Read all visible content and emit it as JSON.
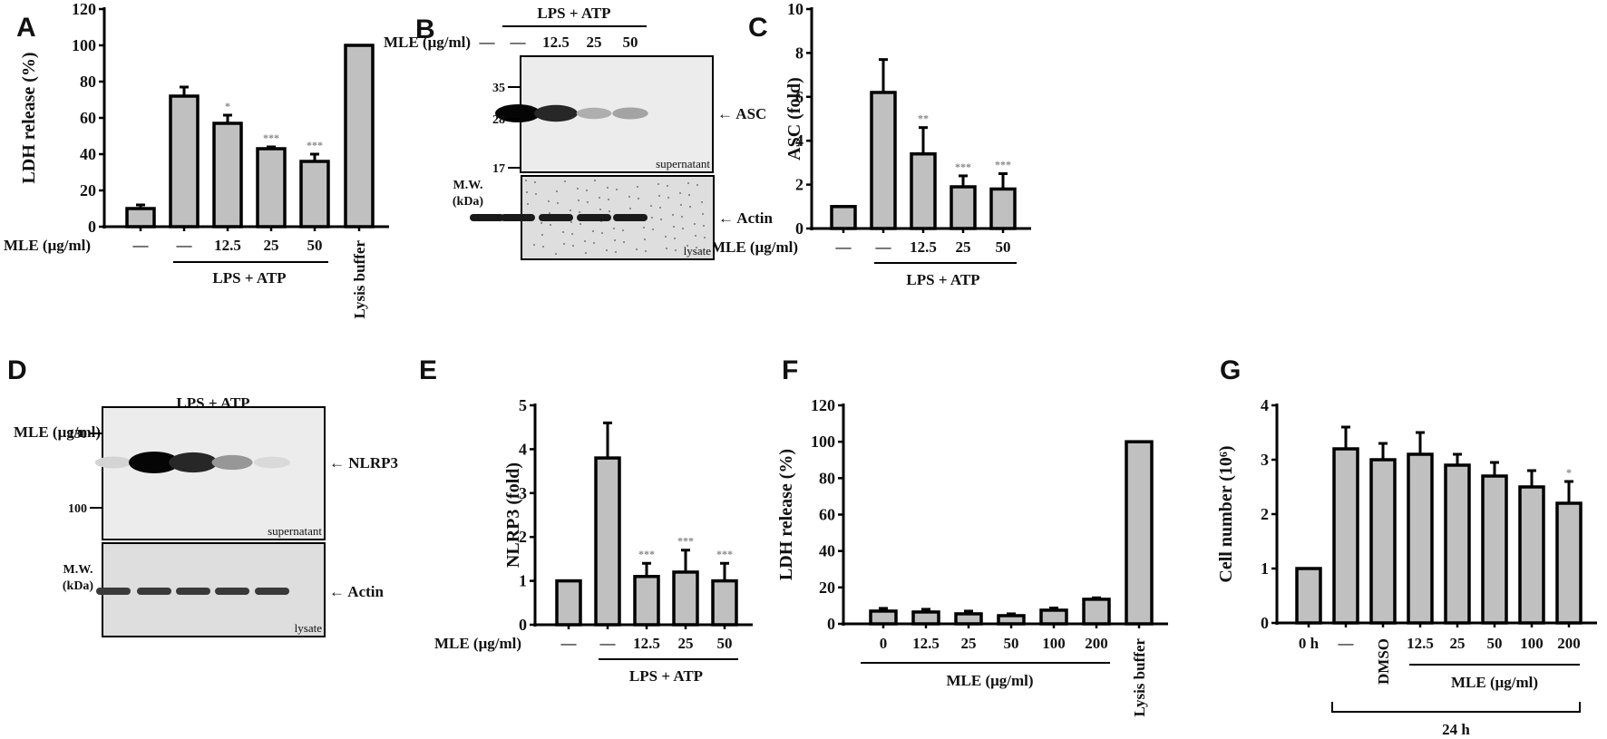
{
  "colors": {
    "bar_fill": "#c0c0c0",
    "axis": "#000000",
    "sig": "#8a8a8a",
    "blot_bg": "#ececec",
    "actin_bg": "#dedede"
  },
  "chart_data": [
    {
      "panel": "A",
      "type": "bar",
      "ylabel": "LDH release (%)",
      "ylim": [
        0,
        120
      ],
      "yticks": [
        0,
        20,
        40,
        60,
        80,
        100,
        120
      ],
      "row_label": "MLE (μg/ml)",
      "categories": [
        "—",
        "—",
        "12.5",
        "25",
        "50",
        "Lysis buffer"
      ],
      "values": [
        10,
        72,
        57,
        43,
        36,
        100
      ],
      "errors": [
        2,
        5,
        4.5,
        1,
        4,
        0
      ],
      "significance": [
        "",
        "",
        "*",
        "***",
        "***",
        ""
      ],
      "group_bar": {
        "label": "LPS + ATP",
        "from": 1,
        "to": 4
      }
    },
    {
      "panel": "B",
      "type": "blot",
      "header": "LPS + ATP",
      "row_label": "MLE (μg/ml)",
      "lanes": [
        "—",
        "—",
        "12.5",
        "25",
        "50"
      ],
      "markers": [
        "35",
        "28",
        "17"
      ],
      "mw_label": "M.W.",
      "mw_unit": "(kDa)",
      "target": "ASC",
      "target_blot": "supernatant",
      "loading": "Actin",
      "loading_blot": "lysate",
      "band_intensity": [
        0,
        1.0,
        0.85,
        0.25,
        0.3
      ]
    },
    {
      "panel": "C",
      "type": "bar",
      "ylabel": "ASC (fold)",
      "ylim": [
        0,
        10
      ],
      "yticks": [
        0,
        2,
        4,
        6,
        8,
        10
      ],
      "row_label": "MLE (μg/ml)",
      "categories": [
        "—",
        "—",
        "12.5",
        "25",
        "50"
      ],
      "values": [
        1,
        6.2,
        3.4,
        1.9,
        1.8
      ],
      "errors": [
        0,
        1.5,
        1.2,
        0.5,
        0.7
      ],
      "significance": [
        "",
        "",
        "**",
        "***",
        "***"
      ],
      "group_bar": {
        "label": "LPS + ATP",
        "from": 1,
        "to": 4
      }
    },
    {
      "panel": "D",
      "type": "blot",
      "header": "LPS + ATP",
      "row_label": "MLE (μg/ml)",
      "lanes": [
        "—",
        "—",
        "12.5",
        "25",
        "50"
      ],
      "markers": [
        "130",
        "100"
      ],
      "mw_label": "M.W.",
      "mw_unit": "(kDa)",
      "target": "NLRP3",
      "target_blot": "supernatant",
      "loading": "Actin",
      "loading_blot": "lysate",
      "band_intensity": [
        0.08,
        1.0,
        0.85,
        0.35,
        0.06
      ]
    },
    {
      "panel": "E",
      "type": "bar",
      "ylabel": "NLRP3 (fold)",
      "ylim": [
        0,
        5
      ],
      "yticks": [
        0,
        1,
        2,
        3,
        4,
        5
      ],
      "row_label": "MLE (μg/ml)",
      "categories": [
        "—",
        "—",
        "12.5",
        "25",
        "50"
      ],
      "values": [
        1,
        3.8,
        1.1,
        1.2,
        1.0
      ],
      "errors": [
        0,
        0.8,
        0.3,
        0.5,
        0.4
      ],
      "significance": [
        "",
        "",
        "***",
        "***",
        "***"
      ],
      "group_bar": {
        "label": "LPS + ATP",
        "from": 1,
        "to": 4
      }
    },
    {
      "panel": "F",
      "type": "bar",
      "ylabel": "LDH release (%)",
      "ylim": [
        0,
        120
      ],
      "yticks": [
        0,
        20,
        40,
        60,
        80,
        100,
        120
      ],
      "categories": [
        "0",
        "12.5",
        "25",
        "50",
        "100",
        "200",
        "Lysis buffer"
      ],
      "values": [
        7,
        6.5,
        5.5,
        4.5,
        7.5,
        13.5,
        100
      ],
      "errors": [
        1.5,
        1.5,
        1.5,
        1,
        1.2,
        0.8,
        0
      ],
      "significance": [
        "",
        "",
        "",
        "",
        "",
        "",
        ""
      ],
      "group_bar": {
        "label": "MLE (μg/ml)",
        "from": 0,
        "to": 5
      }
    },
    {
      "panel": "G",
      "type": "bar",
      "ylabel": "Cell number (10⁶)",
      "ylim": [
        0,
        4
      ],
      "yticks": [
        0,
        1,
        2,
        3,
        4
      ],
      "categories": [
        "0 h",
        "—",
        "DMSO",
        "12.5",
        "25",
        "50",
        "100",
        "200"
      ],
      "values": [
        1,
        3.2,
        3.0,
        3.1,
        2.9,
        2.7,
        2.5,
        2.2
      ],
      "errors": [
        0,
        0.4,
        0.3,
        0.4,
        0.2,
        0.25,
        0.3,
        0.4
      ],
      "significance": [
        "",
        "",
        "",
        "",
        "",
        "",
        "",
        "*"
      ],
      "group_bar": {
        "label": "MLE (μg/ml)",
        "from": 3,
        "to": 7
      },
      "bracket": {
        "label": "24 h",
        "from": 1,
        "to": 7
      }
    }
  ],
  "panels": {
    "A": {
      "letter": "A"
    },
    "B": {
      "letter": "B"
    },
    "C": {
      "letter": "C"
    },
    "D": {
      "letter": "D"
    },
    "E": {
      "letter": "E"
    },
    "F": {
      "letter": "F"
    },
    "G": {
      "letter": "G"
    }
  }
}
